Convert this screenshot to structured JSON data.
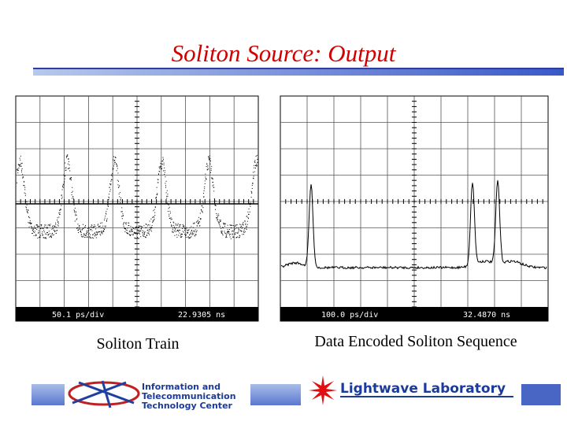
{
  "header": {
    "title": "Soliton Source: Output"
  },
  "panels": [
    {
      "caption": "Soliton Train",
      "scale": "50.1 ps/div",
      "position": "22.9305 ns"
    },
    {
      "caption": "Data Encoded Soliton Sequence",
      "scale": "100.0 ps/div",
      "position": "32.4870 ns"
    }
  ],
  "footer": {
    "ittc": [
      "Information and",
      "Telecommunication",
      "Technology Center"
    ],
    "lab": "Lightwave Laboratory"
  }
}
